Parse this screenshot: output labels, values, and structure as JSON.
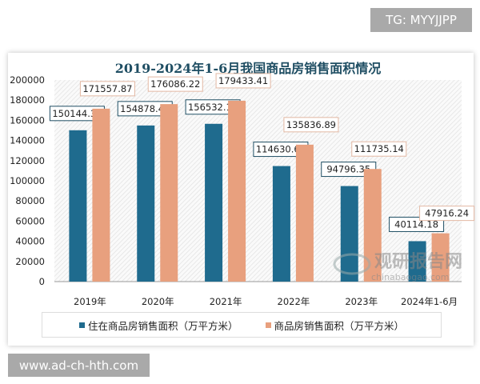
{
  "watermark_top": "TG: MYYJJPP",
  "watermark_bottom": "www.ad-ch-hth.com",
  "chart_data": {
    "type": "bar",
    "title": "2019-2024年1-6月我国商品房销售面积情况",
    "categories": [
      "2019年",
      "2020年",
      "2021年",
      "2022年",
      "2023年",
      "2024年1-6月"
    ],
    "series": [
      {
        "name": "住在商品房销售面积（万平方米）",
        "color": "#1f6b8e",
        "values": [
          150144.32,
          154878.47,
          156532.17,
          114630.65,
          94796.35,
          40114.18
        ],
        "labels": [
          "150144.32",
          "154878.47",
          "156532.17",
          "114630.65",
          "94796.35",
          "40114.18"
        ]
      },
      {
        "name": "商品房销售面积（万平方米）",
        "color": "#e8a07e",
        "values": [
          171557.87,
          176086.22,
          179433.41,
          135836.89,
          111735.14,
          47916.24
        ],
        "labels": [
          "171557.87",
          "176086.22",
          "179433.41",
          "135836.89",
          "111735.14",
          "47916.24"
        ]
      }
    ],
    "ylim": [
      0,
      200000
    ],
    "yticks": [
      "0",
      "20000",
      "40000",
      "60000",
      "80000",
      "100000",
      "120000",
      "140000",
      "160000",
      "180000",
      "200000"
    ],
    "legend": "bottom",
    "grid": false
  },
  "logo": {
    "cn": "观研报告网",
    "en": "chinabaogao.com"
  }
}
